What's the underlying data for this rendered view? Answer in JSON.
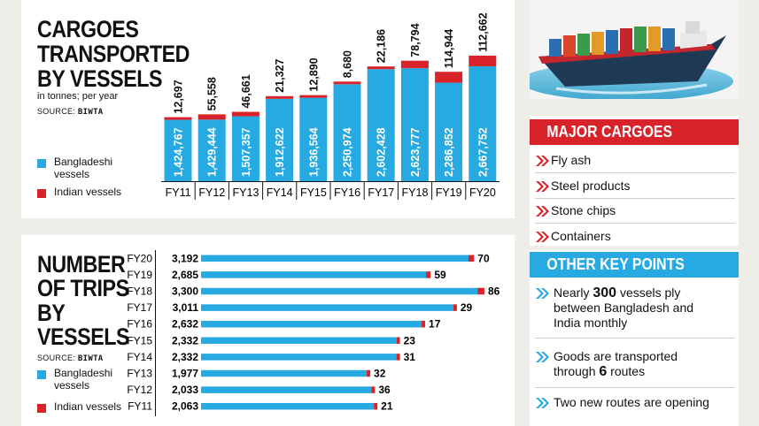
{
  "cargo_panel": {
    "title_lines": [
      "CARGOES",
      "TRANSPORTED",
      "BY VESSELS"
    ],
    "subtitle": "in tonnes; per year",
    "source_label": "SOURCE:",
    "source_name": "BIWTA",
    "legend_bd": "Bangladeshi vessels",
    "legend_in": "Indian vessels"
  },
  "trips_panel": {
    "title_lines": [
      "NUMBER",
      "OF TRIPS",
      "BY",
      "VESSELS"
    ],
    "source_label": "SOURCE:",
    "source_name": "BIWTA",
    "legend_bd": "Bangladeshi vessels",
    "legend_in": "Indian vessels"
  },
  "major_cargoes": {
    "title": "MAJOR CARGOES",
    "items": [
      "Fly ash",
      "Steel products",
      "Stone chips",
      "Containers"
    ]
  },
  "key_points": {
    "title": "OTHER KEY POINTS",
    "p1_a": "Nearly ",
    "p1_b": "300",
    "p1_c": " vessels ply between Bangladesh and India monthly",
    "p2_a": "Goods are transported through ",
    "p2_b": "6",
    "p2_c": " routes",
    "p3": "Two new routes are opening"
  },
  "colors": {
    "blue": "#27a9e1",
    "red": "#d8232a",
    "header_red": "#d8232a",
    "header_blue": "#27a9e1"
  },
  "chart_data": [
    {
      "type": "bar",
      "title": "CARGOES TRANSPORTED BY VESSELS",
      "ylabel": "in tonnes; per year",
      "categories": [
        "FY11",
        "FY12",
        "FY13",
        "FY14",
        "FY15",
        "FY16",
        "FY17",
        "FY18",
        "FY19",
        "FY20"
      ],
      "series": [
        {
          "name": "Bangladeshi vessels",
          "values": [
            1424767,
            1429444,
            1507357,
            1912622,
            1936564,
            2250974,
            2602428,
            2623777,
            2286852,
            2667752
          ],
          "labels": [
            "1,424,767",
            "1,429,444",
            "1,507,357",
            "1,912,622",
            "1,936,564",
            "2,250,974",
            "2,602,428",
            "2,623,777",
            "2,286,852",
            "2,667,752"
          ]
        },
        {
          "name": "Indian vessels",
          "values": [
            12697,
            55558,
            46661,
            21327,
            12890,
            8680,
            22186,
            78794,
            114944,
            112662
          ],
          "labels": [
            "12,697",
            "55,558",
            "46,661",
            "21,327",
            "12,890",
            "8,680",
            "22,186",
            "78,794",
            "114,944",
            "112,662"
          ]
        }
      ],
      "stacked": true
    },
    {
      "type": "bar",
      "orientation": "horizontal",
      "title": "NUMBER OF TRIPS BY VESSELS",
      "categories": [
        "FY20",
        "FY19",
        "FY18",
        "FY17",
        "FY16",
        "FY15",
        "FY14",
        "FY13",
        "FY12",
        "FY11"
      ],
      "series": [
        {
          "name": "Bangladeshi vessels",
          "values": [
            3192,
            2685,
            3300,
            3011,
            2632,
            2332,
            2332,
            1977,
            2033,
            2063
          ],
          "labels": [
            "3,192",
            "2,685",
            "3,300",
            "3,011",
            "2,632",
            "2,332",
            "2,332",
            "1,977",
            "2,033",
            "2,063"
          ]
        },
        {
          "name": "Indian vessels",
          "values": [
            70,
            59,
            86,
            29,
            17,
            23,
            31,
            32,
            36,
            21
          ],
          "labels": [
            "70",
            "59",
            "86",
            "29",
            "17",
            "23",
            "31",
            "32",
            "36",
            "21"
          ]
        }
      ],
      "stacked": true
    }
  ]
}
